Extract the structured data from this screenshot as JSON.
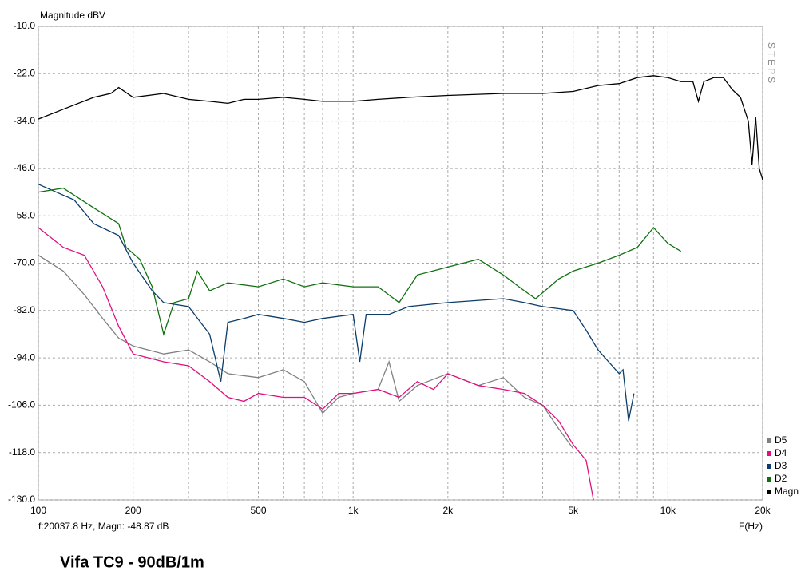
{
  "chart_data": {
    "type": "line",
    "title": "Vifa TC9 - 90dB/1m",
    "y_label": "Magnitude dBV",
    "x_label": "F(Hz)",
    "side_label": "STEPS",
    "status": "f:20037.8 Hz, Magn: -48.87 dB",
    "log_x": true,
    "grid": true,
    "legend": "bottom-right",
    "xlim": [
      100,
      20000
    ],
    "ylim": [
      -130,
      -10
    ],
    "xticks": [
      100,
      200,
      500,
      {
        "value": 1000,
        "label": "1k"
      },
      {
        "value": 2000,
        "label": "2k"
      },
      {
        "value": 5000,
        "label": "5k"
      },
      {
        "value": 10000,
        "label": "10k"
      },
      {
        "value": 20000,
        "label": "20k"
      }
    ],
    "xminor": [
      300,
      400,
      600,
      700,
      800,
      900,
      3000,
      4000,
      6000,
      7000,
      8000,
      9000
    ],
    "yticks": [
      {
        "value": -10,
        "label": "-10.0"
      },
      {
        "value": -22,
        "label": "-22.0"
      },
      {
        "value": -34,
        "label": "-34.0"
      },
      {
        "value": -46,
        "label": "-46.0"
      },
      {
        "value": -58,
        "label": "-58.0"
      },
      {
        "value": -70,
        "label": "-70.0"
      },
      {
        "value": -82,
        "label": "-82.0"
      },
      {
        "value": -94,
        "label": "-94.0"
      },
      {
        "value": -106,
        "label": "-106.0"
      },
      {
        "value": -118,
        "label": "-118.0"
      },
      {
        "value": -130,
        "label": "-130.0"
      }
    ],
    "series": [
      {
        "name": "D5",
        "color": "#808080",
        "x": [
          100,
          120,
          140,
          160,
          180,
          200,
          250,
          300,
          350,
          400,
          500,
          600,
          700,
          800,
          900,
          1000,
          1200,
          1300,
          1400,
          1600,
          2000,
          2500,
          3000,
          3500,
          4000,
          4500,
          5000
        ],
        "values": [
          -68,
          -72,
          -78,
          -84,
          -89,
          -91,
          -93,
          -92,
          -95,
          -98,
          -99,
          -97,
          -100,
          -108,
          -104,
          -103,
          -102,
          -95,
          -105,
          -101,
          -98,
          -101,
          -99,
          -104,
          -106,
          -112,
          -117
        ]
      },
      {
        "name": "D4",
        "color": "#e0107f",
        "x": [
          100,
          120,
          140,
          160,
          180,
          200,
          250,
          300,
          350,
          400,
          450,
          500,
          600,
          700,
          800,
          900,
          1000,
          1200,
          1400,
          1600,
          1800,
          2000,
          2500,
          3000,
          3500,
          4000,
          4500,
          5000,
          5500,
          5800
        ],
        "values": [
          -61,
          -66,
          -68,
          -76,
          -86,
          -93,
          -95,
          -96,
          -100,
          -104,
          -105,
          -103,
          -104,
          -104,
          -107,
          -103,
          -103,
          -102,
          -104,
          -100,
          -102,
          -98,
          -101,
          -102,
          -103,
          -106,
          -110,
          -116,
          -120,
          -130
        ]
      },
      {
        "name": "D3",
        "color": "#0a3d6b",
        "x": [
          100,
          130,
          150,
          180,
          200,
          230,
          250,
          300,
          350,
          380,
          400,
          450,
          500,
          600,
          700,
          800,
          1000,
          1050,
          1100,
          1300,
          1500,
          2000,
          3000,
          3500,
          4000,
          5000,
          5500,
          6000,
          7000,
          7200,
          7500,
          7800
        ],
        "values": [
          -50,
          -54,
          -60,
          -63,
          -70,
          -77,
          -80,
          -81,
          -88,
          -100,
          -85,
          -84,
          -83,
          -84,
          -85,
          -84,
          -83,
          -95,
          -83,
          -83,
          -81,
          -80,
          -79,
          -80,
          -81,
          -82,
          -87,
          -92,
          -98,
          -97,
          -110,
          -103
        ]
      },
      {
        "name": "D2",
        "color": "#107010",
        "x": [
          100,
          120,
          150,
          180,
          190,
          210,
          230,
          250,
          270,
          300,
          320,
          350,
          400,
          500,
          600,
          700,
          800,
          1000,
          1200,
          1400,
          1600,
          2000,
          2500,
          3000,
          3500,
          3800,
          4500,
          5000,
          6000,
          7000,
          8000,
          9000,
          10000,
          11000
        ],
        "values": [
          -52,
          -51,
          -56,
          -60,
          -66,
          -69,
          -76,
          -88,
          -80,
          -79,
          -72,
          -77,
          -75,
          -76,
          -74,
          -76,
          -75,
          -76,
          -76,
          -80,
          -73,
          -71,
          -69,
          -73,
          -77,
          -79,
          -74,
          -72,
          -70,
          -68,
          -66,
          -61,
          -65,
          -67
        ]
      },
      {
        "name": "Magn",
        "color": "#000000",
        "x": [
          100,
          120,
          150,
          170,
          180,
          200,
          250,
          300,
          350,
          400,
          450,
          500,
          600,
          700,
          800,
          1000,
          1200,
          1500,
          2000,
          3000,
          4000,
          5000,
          6000,
          7000,
          8000,
          9000,
          10000,
          11000,
          12000,
          12500,
          13000,
          14000,
          15000,
          16000,
          17000,
          18000,
          18500,
          19000,
          19500,
          20000
        ],
        "values": [
          -33.5,
          -31,
          -28,
          -27,
          -25.5,
          -28,
          -27,
          -28.5,
          -29,
          -29.5,
          -28.5,
          -28.5,
          -28,
          -28.5,
          -29,
          -29,
          -28.5,
          -28,
          -27.5,
          -27,
          -27,
          -26.5,
          -25,
          -24.5,
          -23,
          -22.5,
          -23,
          -24,
          -24,
          -29,
          -24,
          -23,
          -23,
          -26,
          -28,
          -34,
          -45,
          -33,
          -46,
          -48.87
        ]
      }
    ]
  }
}
